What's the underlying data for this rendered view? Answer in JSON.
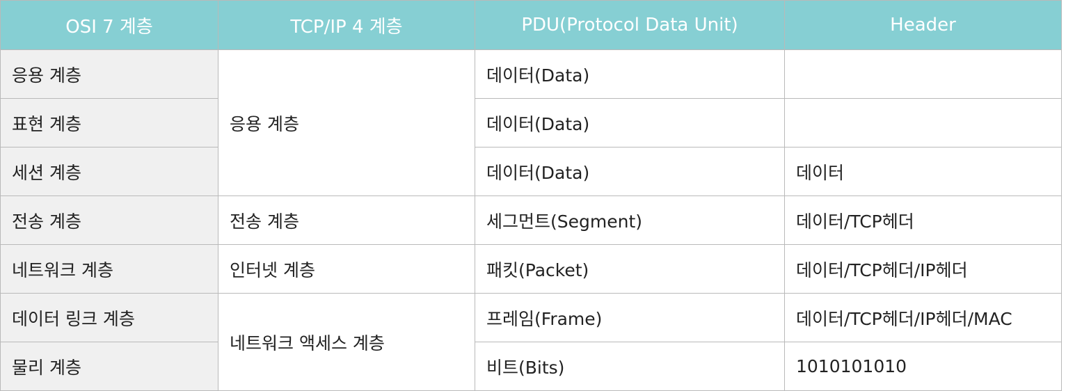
{
  "table": {
    "headers": [
      "OSI 7 계층",
      "TCP/IP 4 계층",
      "PDU(Protocol Data Unit)",
      "Header"
    ],
    "osi_layers": [
      "응용 계층",
      "표현 계층",
      "세션 계층",
      "전송 계층",
      "네트워크 계층",
      "데이터 링크 계층",
      "물리 계층"
    ],
    "tcpip_layers": [
      "응용 계층",
      "전송 계층",
      "인터넷 계층",
      "네트워크 액세스 계층"
    ],
    "pdu": [
      "데이터(Data)",
      "데이터(Data)",
      "데이터(Data)",
      "세그먼트(Segment)",
      "패킷(Packet)",
      "프레임(Frame)",
      "비트(Bits)"
    ],
    "header": [
      "",
      "",
      "데이터",
      "데이터/TCP헤더",
      "데이터/TCP헤더/IP헤더",
      "데이터/TCP헤더/IP헤더/MAC",
      "1010101010"
    ]
  },
  "colors": {
    "header_bg": "#86cfd3",
    "osi_column_bg": "#f0f0f0",
    "border": "#b9b9b9"
  }
}
